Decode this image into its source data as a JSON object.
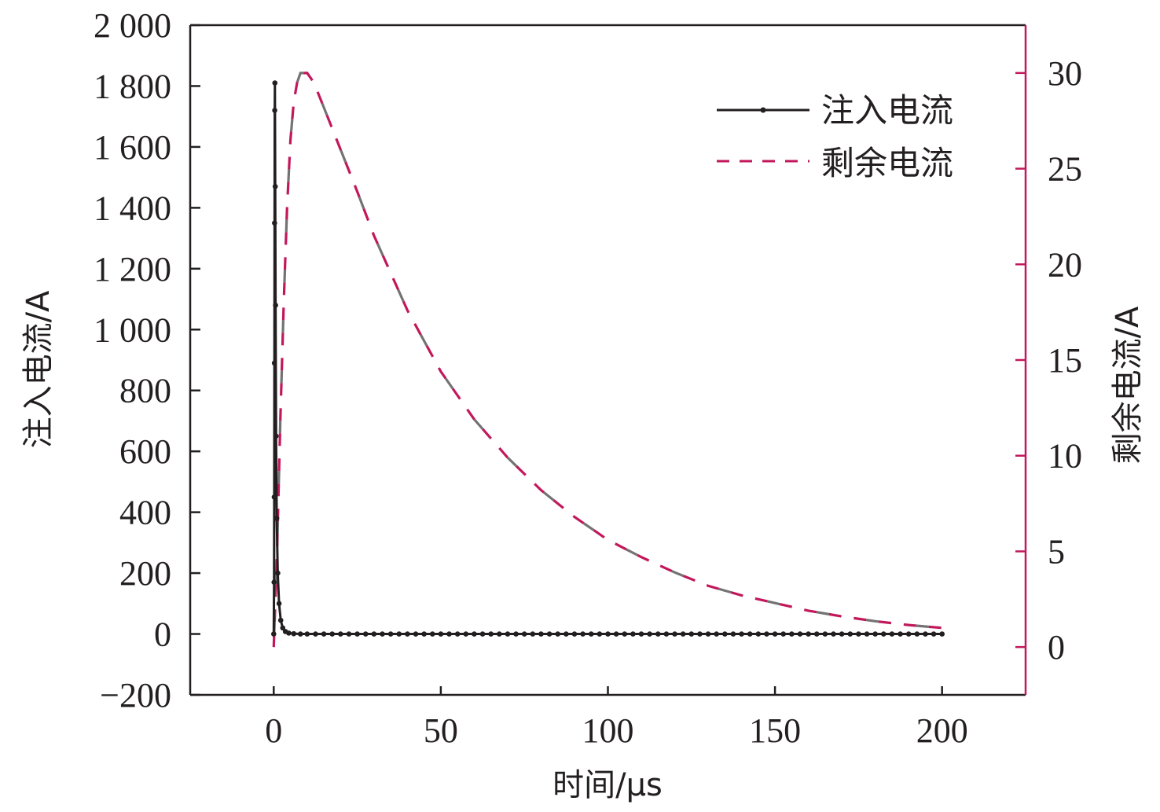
{
  "chart_data": {
    "type": "line",
    "x_axis": {
      "label": "时间/μs",
      "range": [
        -25,
        225
      ],
      "ticks": [
        0,
        50,
        100,
        150,
        200
      ],
      "tick_labels": [
        "0",
        "50",
        "100",
        "150",
        "200"
      ]
    },
    "y_axis_left": {
      "label": "注入电流/A",
      "range": [
        -200,
        2000
      ],
      "ticks": [
        -200,
        0,
        200,
        400,
        600,
        800,
        1000,
        1200,
        1400,
        1600,
        1800,
        2000
      ],
      "tick_labels": [
        "−200",
        "0",
        "200",
        "400",
        "600",
        "800",
        "1 000",
        "1 200",
        "1 400",
        "1 600",
        "1 800",
        "2 000"
      ]
    },
    "y_axis_right": {
      "label": "剩余电流/A",
      "range": [
        -2.5,
        32.5
      ],
      "ticks": [
        0,
        5,
        10,
        15,
        20,
        25,
        30
      ],
      "tick_labels": [
        "0",
        "5",
        "10",
        "15",
        "20",
        "25",
        "30"
      ],
      "color": "#c2185b"
    },
    "legend": {
      "position": "top-right"
    },
    "series": [
      {
        "name": "注入电流",
        "axis": "left",
        "style": "solid-with-markers",
        "color": "#231f20",
        "points": [
          [
            0,
            0
          ],
          [
            0.1,
            170
          ],
          [
            0.15,
            450
          ],
          [
            0.2,
            890
          ],
          [
            0.25,
            1350
          ],
          [
            0.3,
            1720
          ],
          [
            0.35,
            1810
          ],
          [
            0.45,
            1470
          ],
          [
            0.55,
            1080
          ],
          [
            0.7,
            650
          ],
          [
            0.9,
            380
          ],
          [
            1.2,
            200
          ],
          [
            1.6,
            100
          ],
          [
            2.1,
            45
          ],
          [
            2.7,
            20
          ],
          [
            3.5,
            8
          ],
          [
            4.5,
            3
          ],
          [
            6,
            1
          ],
          [
            8,
            0
          ],
          [
            10,
            0
          ],
          [
            200,
            0
          ]
        ],
        "marker_spacing": 2.5
      },
      {
        "name": "剩余电流",
        "axis": "right",
        "style": "dashed",
        "color": "#c2185b",
        "alt_color": "#5a5a5a",
        "points": [
          [
            0,
            0
          ],
          [
            1,
            5
          ],
          [
            2,
            12
          ],
          [
            3,
            18
          ],
          [
            4,
            23
          ],
          [
            5,
            26.5
          ],
          [
            6,
            28.5
          ],
          [
            7,
            29.5
          ],
          [
            8,
            30
          ],
          [
            10,
            30
          ],
          [
            12,
            29.5
          ],
          [
            15,
            28.2
          ],
          [
            20,
            26
          ],
          [
            25,
            23.8
          ],
          [
            30,
            21.5
          ],
          [
            40,
            17.6
          ],
          [
            50,
            14.4
          ],
          [
            60,
            11.9
          ],
          [
            70,
            9.9
          ],
          [
            80,
            8.2
          ],
          [
            90,
            6.8
          ],
          [
            100,
            5.6
          ],
          [
            110,
            4.7
          ],
          [
            120,
            3.9
          ],
          [
            130,
            3.2
          ],
          [
            140,
            2.7
          ],
          [
            150,
            2.3
          ],
          [
            160,
            1.9
          ],
          [
            170,
            1.6
          ],
          [
            180,
            1.35
          ],
          [
            190,
            1.15
          ],
          [
            200,
            1.0
          ]
        ]
      }
    ]
  }
}
